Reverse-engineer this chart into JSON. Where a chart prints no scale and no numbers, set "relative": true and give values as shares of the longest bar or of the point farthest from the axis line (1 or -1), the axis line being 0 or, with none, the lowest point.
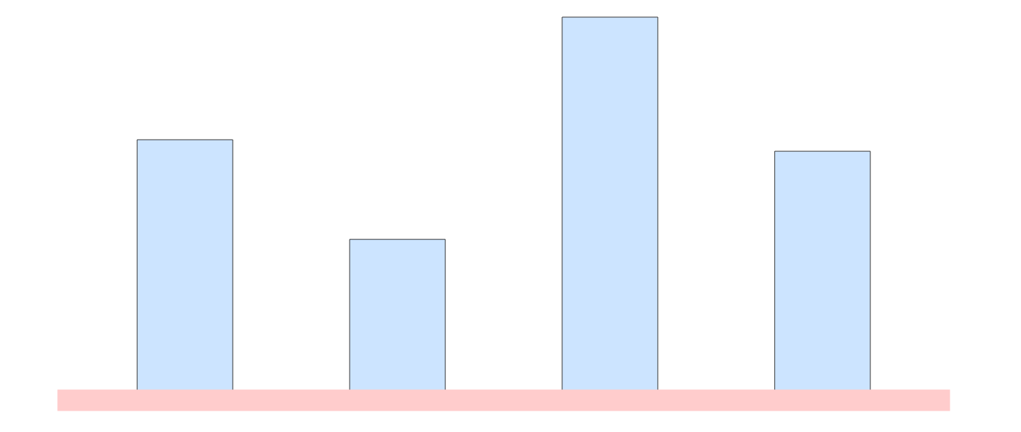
{
  "chart_data": {
    "type": "bar",
    "relative": true,
    "categories": [
      null,
      null,
      null,
      null
    ],
    "values": [
      0.68,
      0.42,
      1,
      0.65
    ],
    "color": "#cce4ff"
  }
}
